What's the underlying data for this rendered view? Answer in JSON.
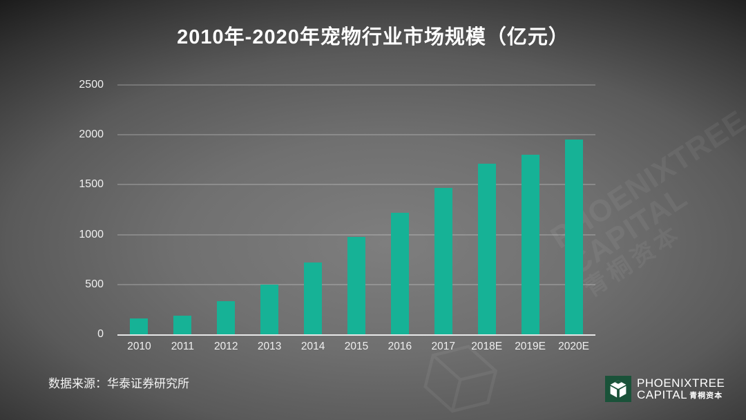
{
  "title": "2010年-2020年宠物行业市场规模（亿元）",
  "source": "数据来源：华泰证券研究所",
  "watermark": {
    "en_line1": "PHOENIXTREE",
    "en_line2": "CAPITAL",
    "cn": "青桐资本"
  },
  "logo": {
    "line1": "PHOENIXTREE",
    "line2": "CAPITAL",
    "cn": "青桐资本"
  },
  "colors": {
    "bar": "#16b296",
    "logo_green": "#1a5239",
    "grid": "rgba(255,255,255,0.40)",
    "text": "#f0f0f0",
    "background_center": "#7e7e7e",
    "background_edge": "#121212"
  },
  "chart_data": {
    "type": "bar",
    "categories": [
      "2010",
      "2011",
      "2012",
      "2013",
      "2014",
      "2015",
      "2016",
      "2017",
      "2018E",
      "2019E",
      "2020E"
    ],
    "values": [
      160,
      190,
      330,
      500,
      720,
      980,
      1220,
      1470,
      1710,
      1800,
      1950
    ],
    "title": "2010年-2020年宠物行业市场规模（亿元）",
    "xlabel": "",
    "ylabel": "",
    "ylim": [
      0,
      2500
    ],
    "yticks": [
      0,
      500,
      1000,
      1500,
      2000,
      2500
    ],
    "grid": true,
    "legend": false,
    "bar_color": "#16b296"
  }
}
